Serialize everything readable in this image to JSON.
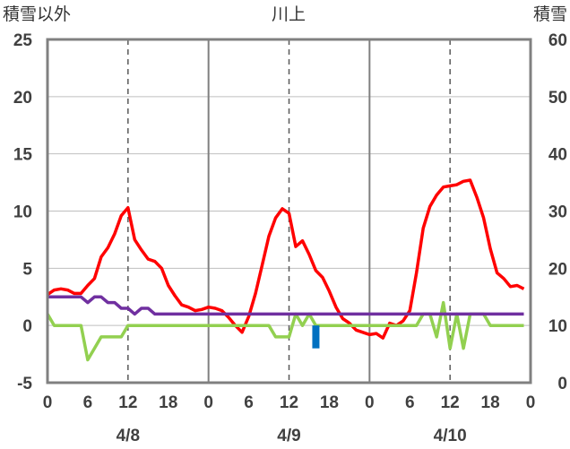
{
  "chart_data": {
    "type": "line",
    "title": "川上",
    "ylabel_left": "積雪以外",
    "ylabel_right": "積雪",
    "ylim_left": [
      -5,
      25
    ],
    "ylim_right": [
      0,
      60
    ],
    "yticks_left": [
      "25",
      "20",
      "15",
      "10",
      "5",
      "0",
      "-5"
    ],
    "yticks_right": [
      "60",
      "50",
      "40",
      "30",
      "20",
      "10",
      "0"
    ],
    "x_hours": [
      0,
      72
    ],
    "xticks": [
      "0",
      "6",
      "12",
      "18",
      "0",
      "6",
      "12",
      "18",
      "0",
      "6",
      "12",
      "18",
      "0"
    ],
    "day_labels": [
      "4/8",
      "4/9",
      "4/10"
    ],
    "grid": true,
    "series": [
      {
        "color": "#ff0000",
        "axis": "left",
        "x": [
          0,
          1,
          2,
          3,
          4,
          5,
          6,
          7,
          8,
          9,
          10,
          11,
          12,
          13,
          14,
          15,
          16,
          17,
          18,
          19,
          20,
          21,
          22,
          23,
          24,
          25,
          26,
          27,
          28,
          29,
          30,
          31,
          32,
          33,
          34,
          35,
          36,
          37,
          38,
          39,
          40,
          41,
          42,
          43,
          44,
          45,
          46,
          47,
          48,
          49,
          50,
          51,
          52,
          53,
          54,
          55,
          56,
          57,
          58,
          59,
          60,
          61,
          62,
          63,
          64,
          65,
          66,
          67,
          68,
          69,
          70,
          71
        ],
        "values": [
          2.7,
          3.1,
          3.2,
          3.1,
          2.8,
          2.8,
          3.5,
          4.1,
          6.0,
          6.8,
          8.0,
          9.6,
          10.3,
          7.5,
          6.6,
          5.8,
          5.6,
          5.0,
          3.5,
          2.6,
          1.8,
          1.6,
          1.3,
          1.4,
          1.6,
          1.5,
          1.3,
          0.7,
          0.0,
          -0.6,
          0.8,
          2.8,
          5.3,
          7.8,
          9.4,
          10.2,
          9.8,
          6.9,
          7.4,
          6.2,
          4.8,
          4.2,
          3.0,
          1.6,
          0.6,
          0.2,
          -0.4,
          -0.6,
          -0.8,
          -0.7,
          -1.1,
          0.2,
          0.0,
          0.4,
          1.3,
          4.6,
          8.5,
          10.4,
          11.4,
          12.1,
          12.2,
          12.3,
          12.6,
          12.7,
          11.2,
          9.4,
          6.7,
          4.6,
          4.1,
          3.4,
          3.5,
          3.2
        ]
      },
      {
        "color": "#92d050",
        "axis": "left",
        "x": [
          0,
          1,
          2,
          3,
          4,
          5,
          6,
          7,
          8,
          9,
          10,
          11,
          12,
          13,
          14,
          15,
          16,
          17,
          18,
          19,
          20,
          21,
          22,
          23,
          24,
          25,
          26,
          27,
          28,
          29,
          30,
          31,
          32,
          33,
          34,
          35,
          36,
          37,
          38,
          39,
          40,
          41,
          42,
          43,
          44,
          45,
          46,
          47,
          48,
          49,
          50,
          51,
          52,
          53,
          54,
          55,
          56,
          57,
          58,
          59,
          60,
          61,
          62,
          63,
          64,
          65,
          66,
          67,
          68,
          69,
          70,
          71
        ],
        "values": [
          1.0,
          0,
          0,
          0,
          0,
          0,
          -3.0,
          -2.0,
          -1.0,
          -1.0,
          -1.0,
          -1.0,
          0,
          0,
          0,
          0,
          0,
          0,
          0,
          0,
          0,
          0,
          0,
          0,
          0,
          0,
          0,
          0,
          0,
          0,
          0,
          0,
          0,
          0,
          -1.0,
          -1.0,
          -1.0,
          1.0,
          0,
          1.0,
          0,
          0,
          0,
          0,
          0,
          0,
          0,
          0,
          0,
          0,
          0,
          0,
          0,
          0,
          0,
          0,
          1.0,
          1.0,
          -1.0,
          2.0,
          -2.0,
          1.0,
          -2.0,
          1.0,
          1.0,
          1.0,
          0,
          0,
          0,
          0,
          0,
          0
        ]
      },
      {
        "color": "#7030a0",
        "axis": "right",
        "x": [
          0,
          1,
          2,
          3,
          4,
          5,
          6,
          7,
          8,
          9,
          10,
          11,
          12,
          13,
          14,
          15,
          16,
          17,
          18,
          19,
          20,
          21,
          22,
          23,
          24,
          25,
          26,
          27,
          28,
          29,
          30,
          31,
          32,
          33,
          34,
          35,
          36,
          37,
          38,
          39,
          40,
          41,
          42,
          43,
          44,
          45,
          46,
          47,
          48,
          49,
          50,
          51,
          52,
          53,
          54,
          55,
          56,
          57,
          58,
          59,
          60,
          61,
          62,
          63,
          64,
          65,
          66,
          67,
          68,
          69,
          70,
          71
        ],
        "values": [
          15,
          15,
          15,
          15,
          15,
          15,
          14,
          15,
          15,
          14,
          14,
          13,
          13,
          12,
          13,
          13,
          12,
          12,
          12,
          12,
          12,
          12,
          12,
          12,
          12,
          12,
          12,
          12,
          12,
          12,
          12,
          12,
          12,
          12,
          12,
          12,
          12,
          12,
          12,
          12,
          12,
          12,
          12,
          12,
          12,
          12,
          12,
          12,
          12,
          12,
          12,
          12,
          12,
          12,
          12,
          12,
          12,
          12,
          12,
          12,
          12,
          12,
          12,
          12,
          12,
          12,
          12,
          12,
          12,
          12,
          12,
          12
        ]
      },
      {
        "color": "#0070c0",
        "axis": "left",
        "type": "bar",
        "x": [
          40
        ],
        "values": [
          -2.0
        ]
      }
    ]
  }
}
